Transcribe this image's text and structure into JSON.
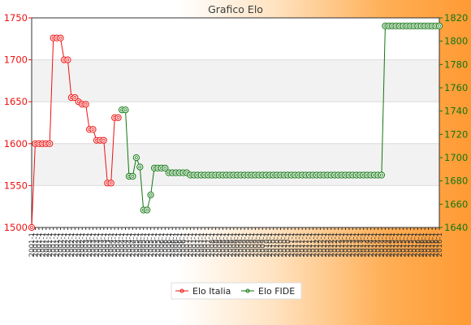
{
  "colors": {
    "italia": "#ee1111",
    "fide": "#117711",
    "band": "#f2f2f2",
    "grid": "#dcdcdc",
    "frame": "#333333"
  },
  "chart_data": {
    "type": "line",
    "title": "Grafico Elo",
    "grid": true,
    "legend_position": "bottom",
    "y_left": {
      "label": "",
      "ylim": [
        1500,
        1750
      ],
      "ticks": [
        1500,
        1550,
        1600,
        1650,
        1700,
        1750
      ]
    },
    "y_right": {
      "label": "",
      "ylim": [
        1640,
        1820
      ],
      "ticks": [
        1640,
        1660,
        1680,
        1700,
        1720,
        1740,
        1760,
        1780,
        1800,
        1820
      ]
    },
    "series": [
      {
        "name": "Elo Italia",
        "axis": "left",
        "values": [
          1500,
          1600,
          1600,
          1600,
          1600,
          1600,
          1726,
          1726,
          1726,
          1700,
          1700,
          1655,
          1655,
          1650,
          1647,
          1647,
          1617,
          1617,
          1604,
          1604,
          1604,
          1553,
          1553,
          1631,
          1631
        ]
      },
      {
        "name": "Elo FIDE",
        "axis": "right",
        "points": [
          [
            25,
            1741
          ],
          [
            26,
            1741
          ],
          [
            27,
            1684
          ],
          [
            28,
            1684
          ],
          [
            29,
            1700
          ],
          [
            30,
            1692
          ],
          [
            31,
            1655
          ],
          [
            32,
            1655
          ],
          [
            33,
            1668
          ],
          [
            34,
            1691
          ],
          [
            35,
            1691
          ],
          [
            36,
            1691
          ],
          [
            37,
            1691
          ],
          [
            38,
            1687
          ],
          [
            39,
            1687
          ],
          [
            40,
            1687
          ],
          [
            41,
            1687
          ],
          [
            42,
            1687
          ],
          [
            43,
            1687
          ],
          [
            44,
            1685
          ],
          [
            97,
            1685
          ],
          [
            98,
            1813
          ],
          [
            113,
            1813
          ]
        ]
      }
    ],
    "x_count": 114,
    "x_labels": [
      "2001-1",
      "2002-1",
      "2003-1",
      "2004-1",
      "2005-1",
      "2006-1",
      "2007-1",
      "2008-1",
      "2009-1",
      "2010-1",
      "2011-1",
      "2012-1",
      "2013-1",
      "2014-1",
      "2015-1",
      "2016-1"
    ]
  }
}
